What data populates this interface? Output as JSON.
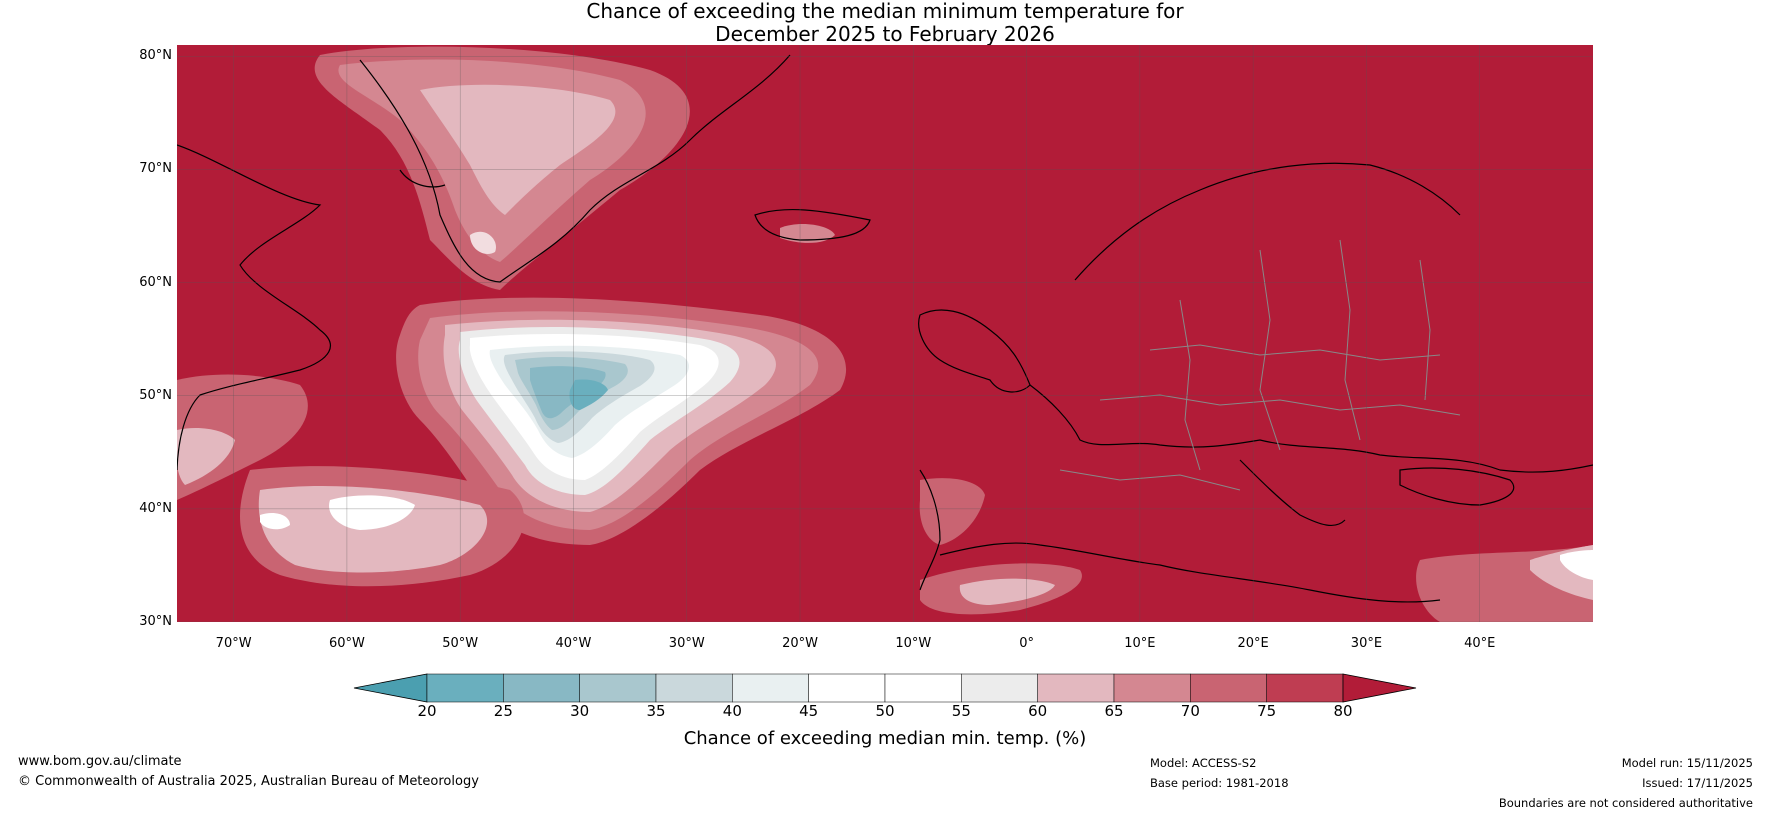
{
  "title": {
    "line1": "Chance of exceeding the median minimum temperature for",
    "line2": "December 2025 to February 2026"
  },
  "map": {
    "lat_labels": [
      "80°N",
      "70°N",
      "60°N",
      "50°N",
      "40°N",
      "30°N"
    ],
    "lon_labels": [
      "70°W",
      "60°W",
      "50°W",
      "40°W",
      "30°W",
      "20°W",
      "10°W",
      "0°",
      "10°E",
      "20°E",
      "30°E",
      "40°E"
    ],
    "extent": {
      "lon_min": -75,
      "lon_max": 50,
      "lat_min": 30,
      "lat_max": 81
    },
    "background_color": "#b21c38",
    "coast_color": "#000000",
    "border_color": "#888888"
  },
  "colorbar": {
    "ticks": [
      "20",
      "25",
      "30",
      "35",
      "40",
      "45",
      "50",
      "55",
      "60",
      "65",
      "70",
      "75",
      "80"
    ],
    "under_color": "#4b9fb0",
    "over_color": "#b21c38",
    "bin_colors": [
      "#6aafbe",
      "#88b8c4",
      "#a9c7ce",
      "#cad8dc",
      "#e9f0f1",
      "#ffffff",
      "#ffffff",
      "#ececec",
      "#e3b8bf",
      "#d48791",
      "#c96472",
      "#bf3d52"
    ],
    "label": "Chance of exceeding median min. temp. (%)"
  },
  "footer": {
    "url": "www.bom.gov.au/climate",
    "copyright": "© Commonwealth of Australia 2025, Australian Bureau of Meteorology",
    "model": "Model: ACCESS-S2",
    "base_period": "Base period: 1981-2018",
    "model_run": "Model run: 15/11/2025",
    "issued": "Issued: 17/11/2025",
    "disclaimer": "Boundaries are not considered authoritative"
  }
}
